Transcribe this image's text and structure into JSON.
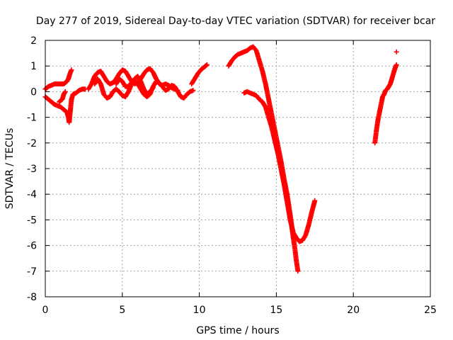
{
  "chart_data": {
    "type": "scatter",
    "title": "Day 277 of 2019, Sidereal Day-to-day VTEC variation (SDTVAR) for receiver bcar",
    "xlabel": "GPS time / hours",
    "ylabel": "SDTVAR / TECUs",
    "xlim": [
      0,
      25
    ],
    "ylim": [
      -8,
      2
    ],
    "xticks": [
      "0",
      "5",
      "10",
      "15",
      "20",
      "25"
    ],
    "yticks": [
      "2",
      "1",
      "0",
      "-1",
      "-2",
      "-3",
      "-4",
      "-5",
      "-6",
      "-7",
      "-8"
    ],
    "grid": true,
    "marker": "plus",
    "color": "#ff0000",
    "segments": [
      [
        [
          0.0,
          -0.2
        ],
        [
          0.2,
          -0.3
        ],
        [
          0.4,
          -0.4
        ],
        [
          0.6,
          -0.5
        ],
        [
          0.8,
          -0.55
        ],
        [
          1.0,
          -0.6
        ],
        [
          1.2,
          -0.7
        ],
        [
          1.4,
          -0.8
        ],
        [
          1.5,
          -1.0
        ],
        [
          1.55,
          -1.2
        ],
        [
          1.6,
          -0.9
        ],
        [
          1.7,
          -0.3
        ],
        [
          1.8,
          -0.1
        ],
        [
          2.0,
          -0.05
        ],
        [
          2.2,
          0.05
        ],
        [
          2.4,
          0.1
        ],
        [
          2.6,
          0.1
        ]
      ],
      [
        [
          0.0,
          0.1
        ],
        [
          0.2,
          0.2
        ],
        [
          0.4,
          0.25
        ],
        [
          0.6,
          0.3
        ],
        [
          0.8,
          0.3
        ],
        [
          1.0,
          0.3
        ],
        [
          1.2,
          0.3
        ],
        [
          1.3,
          0.35
        ],
        [
          1.4,
          0.4
        ],
        [
          1.5,
          0.5
        ],
        [
          1.6,
          0.7
        ],
        [
          1.7,
          0.85
        ]
      ],
      [
        [
          0.9,
          -0.4
        ],
        [
          1.1,
          -0.3
        ],
        [
          1.2,
          -0.1
        ],
        [
          1.3,
          0.0
        ]
      ],
      [
        [
          2.8,
          0.1
        ],
        [
          3.0,
          0.3
        ],
        [
          3.2,
          0.6
        ],
        [
          3.4,
          0.75
        ],
        [
          3.6,
          0.8
        ],
        [
          3.8,
          0.6
        ],
        [
          4.0,
          0.4
        ],
        [
          4.2,
          0.3
        ],
        [
          4.4,
          0.35
        ],
        [
          4.6,
          0.5
        ],
        [
          4.8,
          0.7
        ],
        [
          5.0,
          0.85
        ],
        [
          5.2,
          0.8
        ],
        [
          5.4,
          0.6
        ],
        [
          5.6,
          0.4
        ],
        [
          5.8,
          0.3
        ],
        [
          6.0,
          0.35
        ],
        [
          6.2,
          0.5
        ],
        [
          6.4,
          0.7
        ],
        [
          6.6,
          0.85
        ],
        [
          6.8,
          0.9
        ],
        [
          7.0,
          0.75
        ],
        [
          7.2,
          0.5
        ],
        [
          7.4,
          0.3
        ],
        [
          7.6,
          0.25
        ],
        [
          7.8,
          0.3
        ],
        [
          8.0,
          0.25
        ],
        [
          8.2,
          0.15
        ],
        [
          8.4,
          0.1
        ],
        [
          8.6,
          0.05
        ]
      ],
      [
        [
          3.2,
          0.3
        ],
        [
          3.4,
          0.5
        ],
        [
          3.6,
          0.3
        ],
        [
          3.8,
          -0.1
        ],
        [
          4.0,
          -0.25
        ],
        [
          4.2,
          -0.2
        ],
        [
          4.4,
          0.0
        ],
        [
          4.6,
          0.1
        ],
        [
          4.8,
          0.0
        ],
        [
          5.0,
          -0.15
        ],
        [
          5.2,
          -0.2
        ],
        [
          5.4,
          0.0
        ],
        [
          5.6,
          0.3
        ],
        [
          5.8,
          0.5
        ],
        [
          6.0,
          0.6
        ],
        [
          6.2,
          0.4
        ],
        [
          6.4,
          0.1
        ],
        [
          6.6,
          -0.1
        ],
        [
          6.8,
          0.0
        ],
        [
          7.0,
          0.15
        ]
      ],
      [
        [
          4.6,
          0.3
        ],
        [
          4.8,
          0.5
        ],
        [
          5.0,
          0.4
        ],
        [
          5.2,
          0.2
        ],
        [
          5.4,
          0.2
        ],
        [
          5.6,
          0.35
        ],
        [
          5.8,
          0.45
        ],
        [
          6.0,
          0.3
        ],
        [
          6.2,
          0.1
        ],
        [
          6.4,
          -0.1
        ],
        [
          6.6,
          -0.2
        ],
        [
          6.8,
          -0.1
        ],
        [
          7.0,
          0.2
        ],
        [
          7.2,
          0.4
        ],
        [
          7.4,
          0.35
        ],
        [
          7.6,
          0.2
        ],
        [
          7.8,
          0.05
        ],
        [
          8.0,
          0.1
        ],
        [
          8.2,
          0.25
        ],
        [
          8.4,
          0.2
        ],
        [
          8.6,
          0.0
        ],
        [
          8.8,
          -0.2
        ],
        [
          9.0,
          -0.25
        ],
        [
          9.2,
          -0.1
        ],
        [
          9.4,
          0.0
        ],
        [
          9.6,
          0.05
        ]
      ],
      [
        [
          9.5,
          0.3
        ],
        [
          9.7,
          0.5
        ],
        [
          9.9,
          0.7
        ],
        [
          10.1,
          0.85
        ],
        [
          10.3,
          0.95
        ],
        [
          10.5,
          1.05
        ]
      ],
      [
        [
          11.9,
          1.0
        ],
        [
          12.1,
          1.2
        ],
        [
          12.3,
          1.35
        ],
        [
          12.5,
          1.45
        ],
        [
          12.7,
          1.5
        ],
        [
          12.9,
          1.55
        ],
        [
          13.1,
          1.6
        ],
        [
          13.3,
          1.7
        ],
        [
          13.5,
          1.75
        ],
        [
          13.7,
          1.6
        ],
        [
          13.9,
          1.2
        ],
        [
          14.1,
          0.8
        ],
        [
          14.3,
          0.3
        ],
        [
          14.5,
          -0.3
        ],
        [
          14.7,
          -0.9
        ],
        [
          14.9,
          -1.5
        ],
        [
          15.1,
          -2.1
        ],
        [
          15.3,
          -2.7
        ],
        [
          15.5,
          -3.4
        ],
        [
          15.7,
          -4.0
        ],
        [
          15.9,
          -4.8
        ],
        [
          16.1,
          -5.7
        ],
        [
          16.2,
          -6.1
        ],
        [
          16.3,
          -6.6
        ],
        [
          16.4,
          -7.0
        ]
      ],
      [
        [
          12.9,
          -0.05
        ],
        [
          13.1,
          0.0
        ],
        [
          13.3,
          -0.05
        ],
        [
          13.5,
          -0.1
        ],
        [
          13.7,
          -0.15
        ],
        [
          13.9,
          -0.3
        ],
        [
          14.1,
          -0.4
        ],
        [
          14.3,
          -0.6
        ],
        [
          14.5,
          -1.0
        ],
        [
          14.7,
          -1.4
        ],
        [
          14.9,
          -1.9
        ],
        [
          15.1,
          -2.4
        ],
        [
          15.3,
          -3.0
        ],
        [
          15.5,
          -3.6
        ],
        [
          15.7,
          -4.3
        ],
        [
          15.9,
          -5.0
        ],
        [
          16.1,
          -5.5
        ],
        [
          16.3,
          -5.7
        ],
        [
          16.5,
          -5.85
        ],
        [
          16.7,
          -5.8
        ],
        [
          16.9,
          -5.6
        ],
        [
          17.1,
          -5.2
        ],
        [
          17.3,
          -4.7
        ],
        [
          17.5,
          -4.25
        ]
      ],
      [
        [
          21.4,
          -2.0
        ],
        [
          21.5,
          -1.5
        ],
        [
          21.6,
          -1.1
        ],
        [
          21.7,
          -0.8
        ],
        [
          21.8,
          -0.5
        ],
        [
          21.9,
          -0.2
        ],
        [
          22.0,
          -0.1
        ],
        [
          22.1,
          0.05
        ],
        [
          22.2,
          0.1
        ],
        [
          22.3,
          0.2
        ],
        [
          22.4,
          0.3
        ],
        [
          22.5,
          0.5
        ],
        [
          22.6,
          0.7
        ],
        [
          22.7,
          0.9
        ],
        [
          22.8,
          1.05
        ]
      ],
      [
        [
          22.8,
          1.55
        ]
      ]
    ]
  }
}
